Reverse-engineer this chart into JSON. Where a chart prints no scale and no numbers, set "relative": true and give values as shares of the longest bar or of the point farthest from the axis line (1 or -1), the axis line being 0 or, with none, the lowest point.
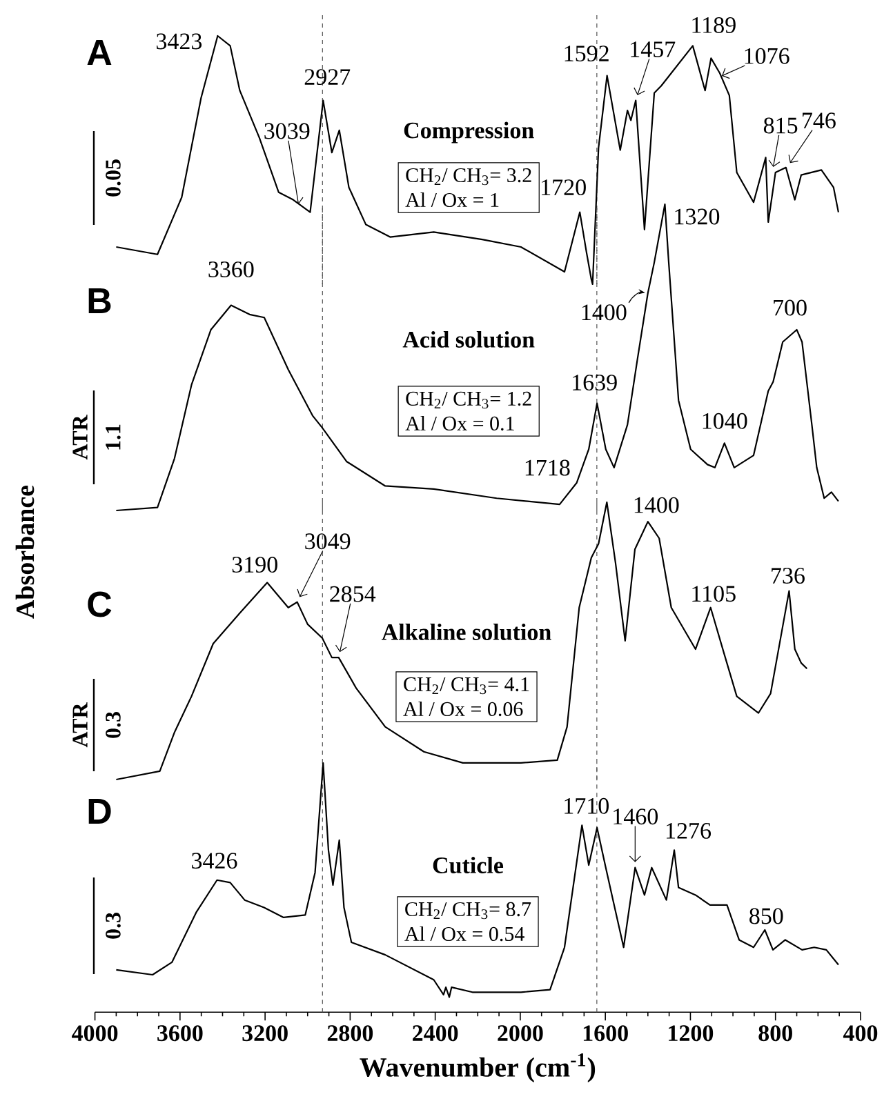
{
  "chart_data": [
    {
      "type": "line",
      "title": "A",
      "relative": true,
      "xlim": [
        4000,
        400
      ],
      "tick_labels": false,
      "x": [
        3900,
        3706,
        3592,
        3501,
        3423,
        3364,
        3319,
        3227,
        3136,
        3068,
        2988,
        2927,
        2886,
        2851,
        2806,
        2726,
        2612,
        2407,
        2179,
        1997,
        1792,
        1720,
        1689,
        1666,
        1660,
        1632,
        1592,
        1530,
        1496,
        1480,
        1457,
        1416,
        1370,
        1336,
        1189,
        1131,
        1103,
        1062,
        1017,
        982,
        903,
        846,
        834,
        800,
        751,
        709,
        679,
        584,
        527,
        504
      ],
      "series": [
        {
          "name": "Compression",
          "color": "#000000",
          "values": [
            0.15,
            0.12,
            0.35,
            0.75,
            1.0,
            0.96,
            0.78,
            0.59,
            0.37,
            0.34,
            0.29,
            0.74,
            0.53,
            0.62,
            0.39,
            0.24,
            0.19,
            0.21,
            0.18,
            0.15,
            0.05,
            0.29,
            0.13,
            0.02,
            0.0,
            0.55,
            0.84,
            0.54,
            0.7,
            0.66,
            0.74,
            0.22,
            0.77,
            0.8,
            0.96,
            0.78,
            0.91,
            0.85,
            0.76,
            0.45,
            0.33,
            0.51,
            0.25,
            0.45,
            0.47,
            0.34,
            0.44,
            0.46,
            0.39,
            0.29
          ]
        }
      ],
      "ref_lines": [
        {
          "axis": "x",
          "value": 2930,
          "line_style": "dashed",
          "color": "#555555"
        },
        {
          "axis": "x",
          "value": 1640,
          "line_style": "dashed",
          "color": "#555555"
        }
      ],
      "annotations": [
        "CH$_{2}$/ CH$_{3}$= 3.2",
        "Al / Ox = 1",
        "0.05",
        {
          "text": "3423",
          "x": 3423,
          "y": 1.0
        },
        {
          "text": "3039",
          "x": 3039,
          "y": 0.3
        },
        {
          "text": "2927",
          "x": 2927,
          "y": 0.74
        },
        {
          "text": "1592",
          "x": 1592,
          "y": 0.84
        },
        {
          "text": "1457",
          "x": 1457,
          "y": 0.74
        },
        {
          "text": "1189",
          "x": 1189,
          "y": 0.96
        },
        {
          "text": "1076",
          "x": 1076,
          "y": 0.83
        },
        {
          "text": "815",
          "x": 815,
          "y": 0.45
        },
        {
          "text": "746",
          "x": 746,
          "y": 0.47
        },
        {
          "text": "1720",
          "x": 1720,
          "y": 0.29
        }
      ]
    },
    {
      "type": "line",
      "title": "B",
      "relative": true,
      "xlim": [
        4000,
        400
      ],
      "tick_labels": false,
      "x": [
        3900,
        3706,
        3626,
        3546,
        3455,
        3360,
        3273,
        3204,
        3091,
        2977,
        2931,
        2817,
        2635,
        2407,
        2111,
        1815,
        1735,
        1678,
        1639,
        1598,
        1559,
        1496,
        1450,
        1400,
        1370,
        1320,
        1302,
        1256,
        1199,
        1120,
        1085,
        1040,
        994,
        903,
        834,
        811,
        766,
        700,
        675,
        629,
        606,
        571,
        537,
        504
      ],
      "series": [
        {
          "name": "Acid solution",
          "color": "#000000",
          "values": [
            0.0,
            0.01,
            0.17,
            0.41,
            0.59,
            0.67,
            0.64,
            0.63,
            0.46,
            0.31,
            0.27,
            0.16,
            0.08,
            0.07,
            0.04,
            0.02,
            0.09,
            0.2,
            0.35,
            0.2,
            0.14,
            0.28,
            0.49,
            0.71,
            0.81,
            1.0,
            0.81,
            0.36,
            0.2,
            0.15,
            0.14,
            0.22,
            0.14,
            0.18,
            0.39,
            0.42,
            0.55,
            0.59,
            0.55,
            0.28,
            0.14,
            0.04,
            0.06,
            0.03
          ]
        }
      ],
      "ref_lines": [
        {
          "axis": "x",
          "value": 2930,
          "line_style": "dashed",
          "color": "#555555"
        },
        {
          "axis": "x",
          "value": 1640,
          "line_style": "dashed",
          "color": "#555555"
        }
      ],
      "annotations": [
        "CH$_{2}$/ CH$_{3}$= 1.2",
        "Al / Ox = 0.1",
        "ATR",
        "1.1",
        {
          "text": "3360",
          "x": 3360,
          "y": 0.67
        },
        {
          "text": "1400",
          "x": 1400,
          "y": 0.71
        },
        {
          "text": "1320",
          "x": 1320,
          "y": 1.0
        },
        {
          "text": "700",
          "x": 700,
          "y": 0.59
        },
        {
          "text": "1639",
          "x": 1639,
          "y": 0.35
        },
        {
          "text": "1040",
          "x": 1040,
          "y": 0.22
        },
        {
          "text": "1718",
          "x": 1718,
          "y": 0.09
        }
      ]
    },
    {
      "type": "line",
      "title": "C",
      "relative": true,
      "xlim": [
        4000,
        400
      ],
      "tick_labels": false,
      "ylabel": "Absorbance",
      "x": [
        3900,
        3695,
        3626,
        3546,
        3444,
        3319,
        3190,
        3091,
        3049,
        3000,
        2931,
        2886,
        2854,
        2772,
        2635,
        2453,
        2270,
        1997,
        1826,
        1780,
        1723,
        1666,
        1632,
        1593,
        1552,
        1507,
        1461,
        1400,
        1347,
        1290,
        1176,
        1105,
        1040,
        982,
        880,
        823,
        736,
        709,
        679,
        652
      ],
      "series": [
        {
          "name": "Alkaline solution",
          "color": "#000000",
          "values": [
            0.0,
            0.03,
            0.17,
            0.3,
            0.49,
            0.6,
            0.71,
            0.62,
            0.64,
            0.56,
            0.51,
            0.44,
            0.44,
            0.33,
            0.19,
            0.1,
            0.06,
            0.06,
            0.07,
            0.19,
            0.62,
            0.8,
            0.85,
            1.0,
            0.78,
            0.5,
            0.83,
            0.93,
            0.87,
            0.62,
            0.47,
            0.62,
            0.45,
            0.3,
            0.24,
            0.31,
            0.68,
            0.47,
            0.42,
            0.4
          ]
        }
      ],
      "ref_lines": [
        {
          "axis": "x",
          "value": 2930,
          "line_style": "dashed",
          "color": "#555555"
        },
        {
          "axis": "x",
          "value": 1640,
          "line_style": "dashed",
          "color": "#555555"
        }
      ],
      "annotations": [
        "CH$_{2}$/ CH$_{3}$= 4.1",
        "Al / Ox = 0.06",
        "ATR",
        "0.3",
        {
          "text": "3190",
          "x": 3190,
          "y": 0.71
        },
        {
          "text": "3049",
          "x": 3049,
          "y": 0.64
        },
        {
          "text": "2854",
          "x": 2854,
          "y": 0.44
        },
        {
          "text": "1400",
          "x": 1400,
          "y": 0.93
        },
        {
          "text": "1105",
          "x": 1105,
          "y": 0.62
        },
        {
          "text": "736",
          "x": 736,
          "y": 0.68
        }
      ]
    },
    {
      "type": "line",
      "title": "D",
      "relative": true,
      "xlim": [
        4000,
        400
      ],
      "xticks": [
        4000,
        3600,
        3200,
        2800,
        2400,
        2000,
        1600,
        1200,
        800,
        400
      ],
      "tick_labels": "x",
      "xlabel": "Wavenumber (cm$^{-1}$)",
      "x": [
        3900,
        3729,
        3638,
        3524,
        3426,
        3364,
        3296,
        3205,
        3113,
        3011,
        2965,
        2927,
        2902,
        2881,
        2851,
        2829,
        2794,
        2635,
        2407,
        2361,
        2350,
        2334,
        2323,
        2225,
        1997,
        1860,
        1792,
        1710,
        1678,
        1639,
        1598,
        1564,
        1514,
        1460,
        1416,
        1382,
        1313,
        1276,
        1256,
        1176,
        1108,
        1028,
        971,
        903,
        850,
        812,
        754,
        675,
        618,
        561,
        504
      ],
      "series": [
        {
          "name": "Cuticle",
          "color": "#000000",
          "values": [
            0.17,
            0.15,
            0.2,
            0.4,
            0.53,
            0.52,
            0.45,
            0.42,
            0.38,
            0.39,
            0.56,
            1.0,
            0.65,
            0.51,
            0.69,
            0.42,
            0.28,
            0.23,
            0.13,
            0.07,
            0.1,
            0.06,
            0.1,
            0.08,
            0.08,
            0.09,
            0.26,
            0.75,
            0.59,
            0.74,
            0.58,
            0.45,
            0.26,
            0.58,
            0.47,
            0.58,
            0.45,
            0.65,
            0.5,
            0.47,
            0.43,
            0.43,
            0.29,
            0.26,
            0.33,
            0.25,
            0.29,
            0.25,
            0.26,
            0.25,
            0.19
          ]
        }
      ],
      "ref_lines": [
        {
          "axis": "x",
          "value": 2930,
          "line_style": "dashed",
          "color": "#555555"
        },
        {
          "axis": "x",
          "value": 1640,
          "line_style": "dashed",
          "color": "#555555"
        }
      ],
      "annotations": [
        "CH$_{2}$/ CH$_{3}$= 8.7",
        "Al / Ox = 0.54",
        "0.3",
        {
          "text": "3426",
          "x": 3426,
          "y": 0.53
        },
        {
          "text": "1710",
          "x": 1710,
          "y": 0.75
        },
        {
          "text": "1460",
          "x": 1460,
          "y": 0.58
        },
        {
          "text": "1276",
          "x": 1276,
          "y": 0.65
        },
        {
          "text": "850",
          "x": 850,
          "y": 0.33
        }
      ]
    }
  ]
}
